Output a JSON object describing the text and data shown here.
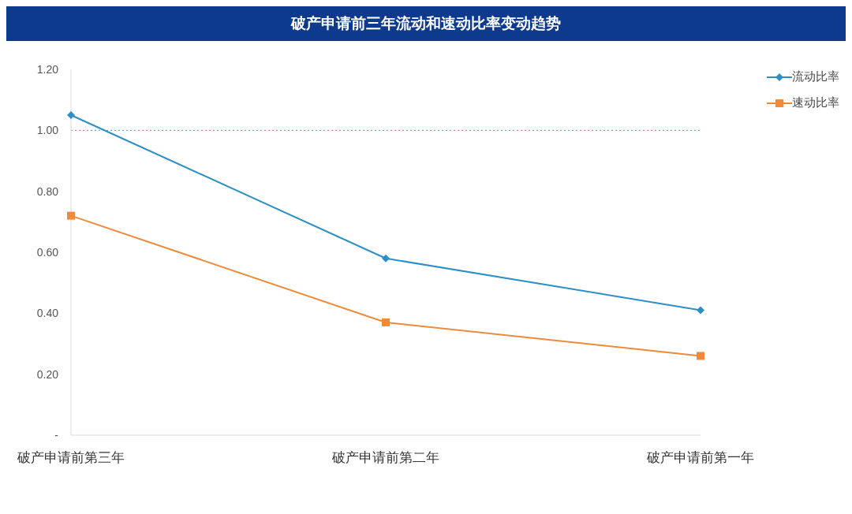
{
  "chart_data": {
    "type": "line",
    "title": "破产申请前三年流动和速动比率变动趋势",
    "categories": [
      "破产申请前第三年",
      "破产申请前第二年",
      "破产申请前第一年"
    ],
    "series": [
      {
        "name": "流动比率",
        "color": "#2e8fc4",
        "values": [
          1.05,
          0.58,
          0.41
        ],
        "marker": "diamond"
      },
      {
        "name": "速动比率",
        "color": "#ee8a3a",
        "values": [
          0.72,
          0.37,
          0.26
        ],
        "marker": "square"
      }
    ],
    "ylim": [
      0,
      1.2
    ],
    "yticks": [
      {
        "value": 0,
        "label": "-"
      },
      {
        "value": 0.2,
        "label": "0.20"
      },
      {
        "value": 0.4,
        "label": "0.40"
      },
      {
        "value": 0.6,
        "label": "0.60"
      },
      {
        "value": 0.8,
        "label": "0.80"
      },
      {
        "value": 1.0,
        "label": "1.00"
      },
      {
        "value": 1.2,
        "label": "1.20"
      }
    ],
    "ref_lines": [
      {
        "axis": "y",
        "value": 1.0,
        "color": "#3aa58f",
        "line_style": "dotted"
      }
    ],
    "grid": false,
    "legend": "top right"
  }
}
